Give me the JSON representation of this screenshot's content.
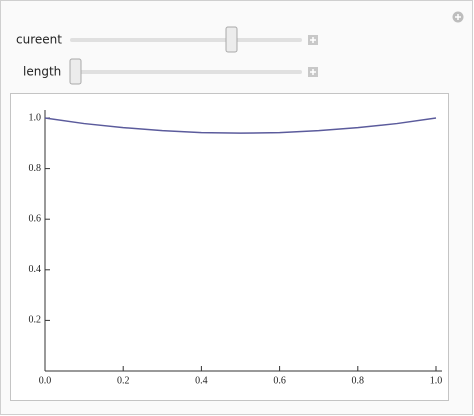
{
  "controls": [
    {
      "label": "cureent"
    },
    {
      "label": "length"
    }
  ],
  "chart_data": {
    "type": "line",
    "x": [
      0,
      0.1,
      0.2,
      0.3,
      0.4,
      0.5,
      0.6,
      0.7,
      0.8,
      0.9,
      1.0
    ],
    "values": [
      1.0,
      0.978,
      0.962,
      0.95,
      0.942,
      0.94,
      0.942,
      0.95,
      0.962,
      0.978,
      1.0
    ],
    "color": "#5b5b9c",
    "xlim": [
      0,
      1.0
    ],
    "ylim": [
      0,
      1.0
    ],
    "xticks": [
      {
        "value": 0,
        "label": "0.0"
      },
      0.2,
      0.4,
      0.6,
      0.8,
      {
        "value": 1,
        "label": "1.0"
      }
    ],
    "yticks": [
      0.2,
      0.4,
      0.6,
      0.8,
      {
        "value": 1,
        "label": "1.0"
      }
    ]
  }
}
